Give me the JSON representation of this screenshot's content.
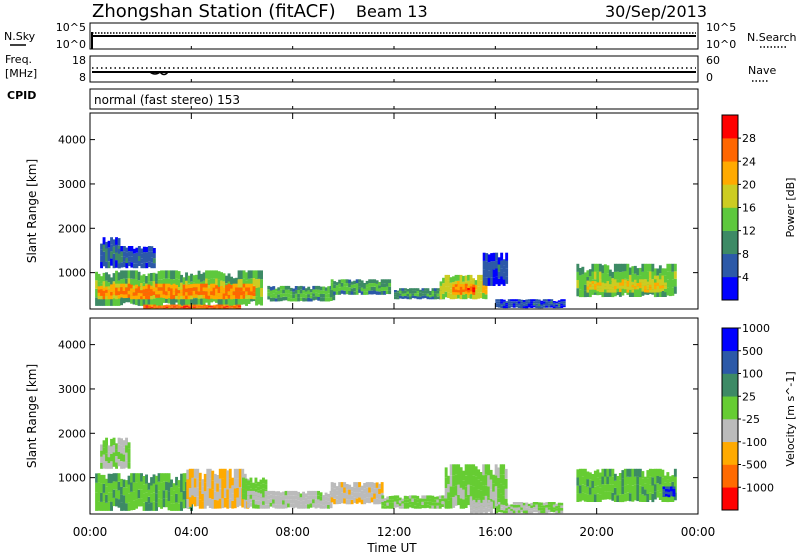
{
  "header": {
    "station": "Zhongshan Station (fitACF)",
    "beam": "Beam 13",
    "date": "30/Sep/2013"
  },
  "panels": {
    "nsky": {
      "label": "N.Sky",
      "ticks": [
        "10^5",
        "10^0"
      ]
    },
    "nsearch": {
      "label": "N.Search",
      "ticks": [
        "10^5",
        "10^0"
      ]
    },
    "freq": {
      "label_line1": "Freq.",
      "label_line2": "[MHz]",
      "ticks": [
        "18",
        "8"
      ]
    },
    "nave": {
      "label": "Nave",
      "ticks": [
        "60",
        "0"
      ]
    },
    "cpid": {
      "label": "CPID",
      "value": "normal (fast stereo) 153"
    }
  },
  "xaxis": {
    "label": "Time UT",
    "ticks": [
      "00:00",
      "04:00",
      "08:00",
      "12:00",
      "16:00",
      "20:00",
      "00:00"
    ],
    "range_hours": [
      0,
      24
    ]
  },
  "colors": {
    "power": [
      "#0000ff",
      "#2c59a8",
      "#3d8a65",
      "#5ec83d",
      "#cccc22",
      "#ffaa00",
      "#ff6600",
      "#ff0000"
    ],
    "velocity": [
      "#ff0000",
      "#ff6a00",
      "#ffaa00",
      "#bbbbbb",
      "#66cc33",
      "#3d8a65",
      "#2c59a8",
      "#0000ff"
    ]
  },
  "chart_data": [
    {
      "type": "heatmap",
      "title": "",
      "ylabel": "Slant Range [km]",
      "ylim": [
        180,
        4600
      ],
      "yticks": [
        1000,
        2000,
        3000,
        4000
      ],
      "colorbar": {
        "label": "Power [dB]",
        "ticks": [
          "4",
          "8",
          "12",
          "16",
          "20",
          "24",
          "28"
        ],
        "range": [
          0,
          32
        ]
      },
      "regions": [
        {
          "t0": 0.2,
          "t1": 6.8,
          "r0": 250,
          "r1": 1050,
          "v": 16
        },
        {
          "t0": 0.3,
          "t1": 6.5,
          "r0": 400,
          "r1": 750,
          "v": 26
        },
        {
          "t0": 0.4,
          "t1": 1.1,
          "r0": 1100,
          "r1": 1800,
          "v": 9
        },
        {
          "t0": 1.1,
          "t1": 2.5,
          "r0": 1100,
          "r1": 1600,
          "v": 8
        },
        {
          "t0": 2.1,
          "t1": 5.9,
          "r0": 180,
          "r1": 280,
          "v": 28
        },
        {
          "t0": 7.0,
          "t1": 9.6,
          "r0": 350,
          "r1": 700,
          "v": 14
        },
        {
          "t0": 9.5,
          "t1": 11.8,
          "r0": 500,
          "r1": 850,
          "v": 14
        },
        {
          "t0": 12.0,
          "t1": 13.8,
          "r0": 400,
          "r1": 650,
          "v": 12
        },
        {
          "t0": 13.8,
          "t1": 15.6,
          "r0": 400,
          "r1": 950,
          "v": 20
        },
        {
          "t0": 14.3,
          "t1": 15.1,
          "r0": 500,
          "r1": 750,
          "v": 27
        },
        {
          "t0": 15.5,
          "t1": 16.4,
          "r0": 700,
          "r1": 1450,
          "v": 7
        },
        {
          "t0": 16.0,
          "t1": 18.7,
          "r0": 200,
          "r1": 400,
          "v": 7
        },
        {
          "t0": 19.2,
          "t1": 23.1,
          "r0": 450,
          "r1": 1200,
          "v": 16
        },
        {
          "t0": 19.6,
          "t1": 22.7,
          "r0": 550,
          "r1": 850,
          "v": 21
        }
      ]
    },
    {
      "type": "heatmap",
      "title": "",
      "ylabel": "Slant Range [km]",
      "ylim": [
        180,
        4600
      ],
      "yticks": [
        1000,
        2000,
        3000,
        4000
      ],
      "colorbar": {
        "label": "Velocity [m s^-1]",
        "ticks": [
          "-1000",
          "-500",
          "-100",
          "-25",
          "25",
          "100",
          "500",
          "1000"
        ],
        "range": [
          -1200,
          1200
        ]
      },
      "regions": [
        {
          "t0": 0.2,
          "t1": 4.0,
          "r0": 250,
          "r1": 1100,
          "v": 250
        },
        {
          "t0": 0.4,
          "t1": 1.5,
          "r0": 1200,
          "r1": 1900,
          "v": 0
        },
        {
          "t0": 3.8,
          "t1": 6.2,
          "r0": 300,
          "r1": 1200,
          "v": -300
        },
        {
          "t0": 6.0,
          "t1": 6.9,
          "r0": 500,
          "r1": 1000,
          "v": 150
        },
        {
          "t0": 6.2,
          "t1": 9.5,
          "r0": 300,
          "r1": 700,
          "v": -90
        },
        {
          "t0": 9.5,
          "t1": 11.5,
          "r0": 400,
          "r1": 900,
          "v": -250
        },
        {
          "t0": 11.5,
          "t1": 14.0,
          "r0": 300,
          "r1": 600,
          "v": 60
        },
        {
          "t0": 14.0,
          "t1": 16.4,
          "r0": 300,
          "r1": 1300,
          "v": 70
        },
        {
          "t0": 15.0,
          "t1": 15.8,
          "r0": 200,
          "r1": 500,
          "v": -150
        },
        {
          "t0": 16.0,
          "t1": 18.6,
          "r0": 200,
          "r1": 450,
          "v": 10
        },
        {
          "t0": 19.2,
          "t1": 23.1,
          "r0": 450,
          "r1": 1200,
          "v": 250
        },
        {
          "t0": 22.6,
          "t1": 23.0,
          "r0": 550,
          "r1": 800,
          "v": 900
        }
      ]
    }
  ]
}
